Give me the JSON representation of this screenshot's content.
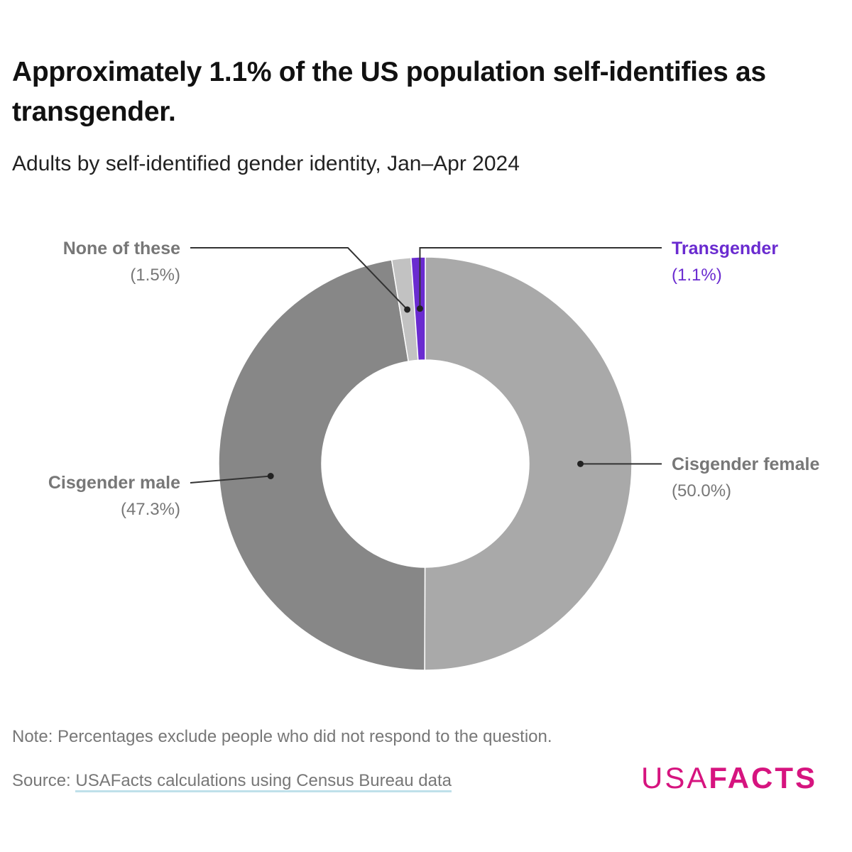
{
  "title": "Approximately 1.1% of the US population self-identifies as transgender.",
  "subtitle": "Adults by self-identified gender identity, Jan–Apr 2024",
  "chart_data": {
    "type": "pie",
    "variant": "donut",
    "start": "top, clockwise",
    "slices": [
      {
        "name": "Cisgender female",
        "value": 50.0,
        "label": "(50.0%)",
        "color": "#a9a9a9",
        "label_color": "#777777"
      },
      {
        "name": "Cisgender male",
        "value": 47.3,
        "label": "(47.3%)",
        "color": "#878787",
        "label_color": "#777777"
      },
      {
        "name": "None of these",
        "value": 1.5,
        "label": "(1.5%)",
        "color": "#c2c2c2",
        "label_color": "#777777"
      },
      {
        "name": "Transgender",
        "value": 1.1,
        "label": "(1.1%)",
        "color": "#6a2bd0",
        "label_color": "#6a2bd0"
      }
    ]
  },
  "note": "Note: Percentages exclude people who did not respond to the question.",
  "source_prefix": "Source: ",
  "source_link": "USAFacts calculations using Census Bureau data",
  "logo": {
    "light": "USA",
    "bold": "FACTS",
    "color": "#d6147f"
  }
}
